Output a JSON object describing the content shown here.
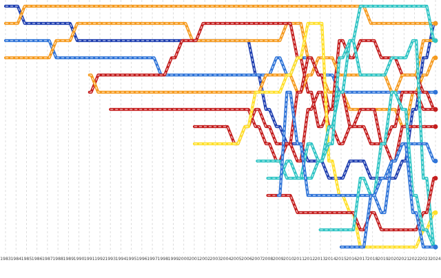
{
  "chart_data": {
    "type": "line",
    "x": [
      1983,
      1984,
      1985,
      1986,
      1987,
      1988,
      1989,
      1990,
      1991,
      1992,
      1993,
      1994,
      1995,
      1996,
      1997,
      1998,
      1999,
      2000,
      2001,
      2002,
      2003,
      2004,
      2005,
      2006,
      2007,
      2008,
      2009,
      2010,
      2011,
      2012,
      2013,
      2014,
      2015,
      2016,
      2017,
      2018,
      2019,
      2020,
      2021,
      2022,
      2023,
      2024
    ],
    "x_tick_labels": [
      "1983",
      "1984",
      "1985",
      "1986",
      "1987",
      "1988",
      "1989",
      "1990",
      "1991",
      "1992",
      "1993",
      "1994",
      "1995",
      "1996",
      "1997",
      "1998",
      "1999",
      "2000",
      "2001",
      "2002",
      "2003",
      "2004",
      "2005",
      "2006",
      "2007",
      "2008",
      "2009",
      "2010",
      "2011",
      "2012",
      "2013",
      "2014",
      "2015",
      "2016",
      "2017",
      "2018",
      "2019",
      "2020",
      "2021",
      "2022",
      "2023",
      "2024"
    ],
    "y_axis": {
      "type": "rank",
      "inverted": true,
      "min": 1,
      "max": 15,
      "tick_labels_shown": false
    },
    "grid": {
      "vertical": true,
      "style": "dashed",
      "horizontal": false
    },
    "legend": "none",
    "title": "",
    "xlabel": "",
    "ylabel": "",
    "series": [
      {
        "color": "#1f3fb0",
        "x": [
          1983,
          1984,
          1985,
          1986,
          1987,
          1988,
          1989,
          1990,
          1991,
          1992,
          1993,
          1994,
          1995,
          1996,
          1997,
          1998,
          1999,
          2000,
          2001,
          2002,
          2003,
          2004,
          2005,
          2006,
          2007,
          2008,
          2009,
          2010,
          2011,
          2012,
          2013,
          2014,
          2015,
          2016,
          2017,
          2018,
          2019,
          2020,
          2021,
          2022,
          2023,
          2024
        ],
        "y": [
          1,
          1,
          2,
          2,
          2,
          2,
          2,
          3,
          3,
          3,
          3,
          3,
          3,
          3,
          3,
          3,
          3,
          3,
          3,
          3,
          3,
          3,
          3,
          3,
          5,
          7,
          8,
          9,
          9,
          10,
          10,
          11,
          11,
          10,
          10,
          11,
          11,
          11,
          10,
          7,
          4,
          2
        ]
      },
      {
        "color": "#f59a1e",
        "x": [
          1983,
          1984,
          1985,
          1986,
          1987,
          1988,
          1989,
          1990,
          1991,
          1992,
          1993,
          1994,
          1995,
          1996,
          1997,
          1998,
          1999,
          2000,
          2001,
          2002,
          2003,
          2004,
          2005,
          2006,
          2007,
          2008,
          2009,
          2010,
          2011,
          2012,
          2013,
          2014,
          2015,
          2016,
          2017,
          2018,
          2019,
          2020,
          2021,
          2022,
          2023,
          2024
        ],
        "y": [
          2,
          2,
          1,
          1,
          1,
          1,
          1,
          1,
          1,
          1,
          1,
          1,
          1,
          1,
          1,
          1,
          1,
          1,
          1,
          1,
          1,
          1,
          1,
          1,
          1,
          1,
          1,
          1,
          1,
          1,
          1,
          1,
          1,
          1,
          1,
          2,
          2,
          2,
          2,
          2,
          2,
          2
        ]
      },
      {
        "color": "#2f74d8",
        "x": [
          1983,
          1984,
          1985,
          1986,
          1987,
          1988,
          1989,
          1990,
          1991,
          1992,
          1993,
          1994,
          1995,
          1996,
          1997,
          1998,
          1999,
          2000,
          2001,
          2002,
          2003,
          2004,
          2005,
          2006,
          2007,
          2008,
          2009,
          2010,
          2011,
          2012,
          2013,
          2014,
          2015,
          2016,
          2017,
          2018,
          2019,
          2020,
          2021,
          2022,
          2023,
          2024
        ],
        "y": [
          3,
          3,
          3,
          3,
          3,
          4,
          4,
          4,
          4,
          4,
          4,
          4,
          4,
          4,
          4,
          5,
          5,
          5,
          5,
          5,
          5,
          5,
          5,
          5,
          5,
          5,
          4,
          5,
          4,
          4,
          5,
          5,
          6,
          6,
          6,
          6,
          6,
          6,
          6,
          6,
          6,
          6
        ]
      },
      {
        "color": "#f59a1e",
        "x": [
          1983,
          1984,
          1985,
          1986,
          1987,
          1988,
          1989,
          1990,
          1991,
          1992,
          1993,
          1994,
          1995,
          1996,
          1997,
          1998,
          1999,
          2000,
          2001,
          2002,
          2003,
          2004,
          2005,
          2006,
          2007,
          2008,
          2009,
          2010,
          2011,
          2012,
          2013,
          2014,
          2015,
          2016,
          2017,
          2018,
          2019,
          2020,
          2021,
          2022,
          2023,
          2024
        ],
        "y": [
          4,
          4,
          4,
          4,
          4,
          3,
          3,
          2,
          2,
          2,
          2,
          2,
          2,
          2,
          2,
          2,
          2,
          2,
          3,
          3,
          3,
          3,
          3,
          3,
          3,
          3,
          3,
          2,
          2,
          4,
          5,
          6,
          6,
          7,
          7,
          7,
          7,
          7,
          8,
          6,
          5,
          4
        ]
      },
      {
        "color": "#c41e1e",
        "x": [
          1991,
          1992,
          1993,
          1994,
          1995,
          1996,
          1997,
          1998,
          1999,
          2000,
          2001,
          2002,
          2003,
          2004,
          2005,
          2006,
          2007,
          2008,
          2009,
          2010,
          2011,
          2012,
          2013,
          2014,
          2015,
          2016,
          2017,
          2018,
          2019,
          2020,
          2021,
          2022,
          2023,
          2024
        ],
        "y": [
          6,
          5,
          5,
          5,
          5,
          5,
          5,
          5,
          4,
          3,
          3,
          2,
          2,
          2,
          2,
          2,
          2,
          2,
          2,
          2,
          4,
          6,
          8,
          7,
          3,
          4,
          3,
          3,
          4,
          4,
          5,
          5,
          6,
          7
        ]
      },
      {
        "color": "#f59a1e",
        "x": [
          1991,
          1992,
          1993,
          1994,
          1995,
          1996,
          1997,
          1998,
          1999,
          2000,
          2001,
          2002,
          2003,
          2004,
          2005,
          2006,
          2007,
          2008,
          2009,
          2010,
          2011,
          2012,
          2013,
          2014,
          2015,
          2016,
          2017,
          2018,
          2019,
          2020,
          2021,
          2022,
          2023,
          2024
        ],
        "y": [
          5,
          6,
          6,
          6,
          6,
          6,
          6,
          6,
          6,
          6,
          6,
          6,
          6,
          6,
          6,
          6,
          6,
          5,
          5,
          5,
          6,
          5,
          4,
          4,
          5,
          5,
          5,
          5,
          5,
          6,
          5,
          5,
          3,
          3
        ]
      },
      {
        "color": "#c41e1e",
        "x": [
          1993,
          1994,
          1995,
          1996,
          1997,
          1998,
          1999,
          2000,
          2001,
          2002,
          2003,
          2004,
          2005,
          2006,
          2007,
          2008,
          2009,
          2010,
          2011,
          2012,
          2013,
          2014,
          2015,
          2016,
          2017,
          2018,
          2019,
          2020,
          2021,
          2022,
          2023,
          2024
        ],
        "y": [
          7,
          7,
          7,
          7,
          7,
          7,
          7,
          7,
          7,
          7,
          7,
          7,
          7,
          7,
          8,
          9,
          10,
          9,
          6,
          4,
          5,
          7,
          6,
          8,
          7,
          7,
          9,
          8,
          6,
          6,
          7,
          7
        ]
      },
      {
        "color": "#c41e1e",
        "x": [
          2001,
          2002,
          2003,
          2004,
          2005,
          2006,
          2007,
          2008,
          2009,
          2010,
          2011,
          2012,
          2013,
          2014,
          2015,
          2016,
          2017,
          2018,
          2019,
          2020,
          2021,
          2022,
          2023,
          2024
        ],
        "y": [
          8,
          8,
          8,
          8,
          9,
          8,
          7,
          8,
          9,
          9,
          10,
          7,
          6,
          8,
          9,
          8,
          8,
          9,
          9,
          10,
          8,
          8,
          8,
          8
        ]
      },
      {
        "color": "#ffe02a",
        "x": [
          2001,
          2002,
          2003,
          2004,
          2005,
          2006,
          2007,
          2008,
          2009,
          2010,
          2011,
          2012,
          2013,
          2014,
          2015,
          2016,
          2017,
          2018,
          2019,
          2020,
          2021,
          2022,
          2023,
          2024
        ],
        "y": [
          9,
          9,
          9,
          9,
          9,
          8,
          6,
          6,
          6,
          5,
          4,
          2,
          2,
          10,
          12,
          13,
          15,
          15,
          15,
          15,
          15,
          15,
          14,
          13
        ]
      },
      {
        "color": "#2ec4c4",
        "x": [
          2007,
          2008,
          2009,
          2010,
          2011,
          2012,
          2013,
          2014,
          2015,
          2016,
          2017,
          2018,
          2019,
          2020,
          2021,
          2022,
          2023,
          2024
        ],
        "y": [
          10,
          10,
          10,
          11,
          11,
          11,
          10,
          8,
          6,
          3,
          1,
          1,
          1,
          1,
          1,
          1,
          1,
          3
        ]
      },
      {
        "color": "#2ec4c4",
        "x": [
          2008,
          2009,
          2010,
          2011,
          2012,
          2013,
          2014,
          2015,
          2016,
          2017,
          2018,
          2019,
          2020,
          2021,
          2022,
          2023,
          2024
        ],
        "y": [
          11,
          11,
          10,
          11,
          9,
          10,
          9,
          4,
          3,
          5,
          5,
          5,
          4,
          4,
          3,
          11,
          15
        ]
      },
      {
        "color": "#c41e1e",
        "x": [
          2008,
          2009,
          2010,
          2011,
          2012,
          2013,
          2014,
          2015,
          2016,
          2017,
          2018,
          2019,
          2020,
          2021,
          2022,
          2023,
          2024
        ],
        "y": [
          12,
          12,
          12,
          13,
          13,
          13,
          13,
          13,
          13,
          14,
          13,
          14,
          14,
          14,
          14,
          13,
          11
        ]
      },
      {
        "color": "#2f74d8",
        "x": [
          2009,
          2010,
          2011,
          2012,
          2013,
          2014,
          2015,
          2016,
          2017,
          2018,
          2019,
          2020,
          2021,
          2022,
          2023,
          2024
        ],
        "y": [
          12,
          6,
          9,
          12,
          12,
          12,
          12,
          12,
          12,
          12,
          13,
          10,
          9,
          9,
          9,
          10
        ]
      },
      {
        "color": "#2ec4c4",
        "x": [
          2013,
          2014,
          2015,
          2016,
          2017,
          2018,
          2019,
          2020,
          2021,
          2022,
          2023,
          2024
        ],
        "y": [
          14,
          14,
          14,
          14,
          11,
          12,
          9,
          6,
          7,
          12,
          14,
          15
        ]
      },
      {
        "color": "#2f74d8",
        "x": [
          2015,
          2016,
          2017,
          2018,
          2019,
          2020,
          2021,
          2022,
          2023,
          2024
        ],
        "y": [
          15,
          15,
          15,
          12,
          11,
          10,
          9,
          13,
          15,
          15
        ]
      }
    ]
  }
}
